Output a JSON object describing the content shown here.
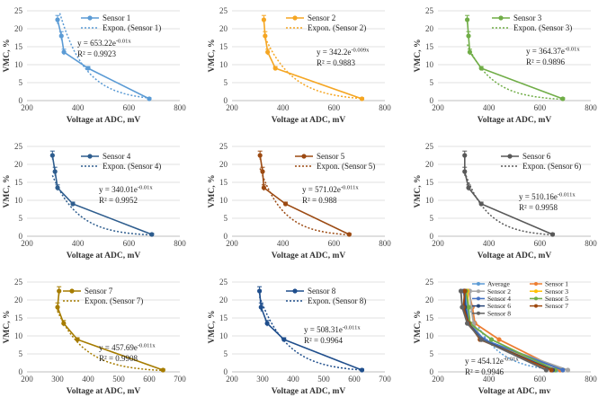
{
  "chart_data": [
    {
      "type": "line",
      "name": "Sensor 1",
      "color": "#5b9bd5",
      "x": [
        320,
        335,
        345,
        440,
        680
      ],
      "y": [
        22.5,
        18,
        13.5,
        9,
        0.5
      ],
      "err": [
        1.2,
        1.2,
        0.8,
        0.5,
        0.3
      ],
      "trend_label": "Expon. (Sensor 1)",
      "trend_a": 653.22,
      "trend_b": 0.01,
      "equation": "y = 653.22e",
      "exponent": "-0.01x",
      "r2": "R² = 0.9923",
      "xlim": [
        200,
        800
      ],
      "xticks": [
        "200",
        "400",
        "600",
        "800"
      ],
      "ylim": [
        0,
        25
      ],
      "yticks": [
        "0",
        "5",
        "10",
        "15",
        "20",
        "25"
      ],
      "xlabel": "Voltage at ADC, mV",
      "ylabel": "VMC, %"
    },
    {
      "type": "line",
      "name": "Sensor 2",
      "color": "#f5a623",
      "x": [
        325,
        330,
        340,
        370,
        710
      ],
      "y": [
        22.5,
        18,
        13.5,
        9,
        0.5
      ],
      "err": [
        1.2,
        1.2,
        0.8,
        0.5,
        0.3
      ],
      "trend_label": "Expon. (Sensor 2)",
      "trend_a": 342.2,
      "trend_b": 0.009,
      "equation": "y = 342.2e",
      "exponent": "-0.009x",
      "r2": "R² = 0.9883",
      "xlim": [
        200,
        800
      ],
      "xticks": [
        "200",
        "400",
        "600",
        "800"
      ],
      "ylim": [
        0,
        25
      ],
      "yticks": [
        "0",
        "5",
        "10",
        "15",
        "20",
        "25"
      ],
      "xlabel": "Voltage at ADC, mV",
      "ylabel": "VMC, %"
    },
    {
      "type": "line",
      "name": "Sensor 3",
      "color": "#70ad47",
      "x": [
        315,
        320,
        325,
        370,
        690
      ],
      "y": [
        22.5,
        18,
        13.5,
        9,
        0.5
      ],
      "err": [
        1.2,
        1.2,
        0.8,
        0.5,
        0.3
      ],
      "trend_label": "Expon. (Sensor 3)",
      "trend_a": 364.37,
      "trend_b": 0.01,
      "equation": "y = 364.37e",
      "exponent": "-0.01x",
      "r2": "R² = 0.9896",
      "xlim": [
        200,
        800
      ],
      "xticks": [
        "200",
        "400",
        "600",
        "800"
      ],
      "ylim": [
        0,
        25
      ],
      "yticks": [
        "0",
        "5",
        "10",
        "15",
        "20",
        "25"
      ],
      "xlabel": "Voltage at ADC, mV",
      "ylabel": "VMC, %"
    },
    {
      "type": "line",
      "name": "Sensor 4",
      "color": "#2e5d8e",
      "x": [
        300,
        310,
        320,
        380,
        690
      ],
      "y": [
        22.5,
        18,
        13.5,
        9,
        0.5
      ],
      "err": [
        1.2,
        1.2,
        0.8,
        0.5,
        0.3
      ],
      "trend_label": "Expon. (Sensor 4)",
      "trend_a": 340.01,
      "trend_b": 0.01,
      "equation": "y = 340.01e",
      "exponent": "-0.01x",
      "r2": "R² = 0.9952",
      "xlim": [
        200,
        800
      ],
      "xticks": [
        "200",
        "400",
        "600",
        "800"
      ],
      "ylim": [
        0,
        25
      ],
      "yticks": [
        "0",
        "5",
        "10",
        "15",
        "20",
        "25"
      ],
      "xlabel": "Voltage at ADC, mV",
      "ylabel": "VMC, %"
    },
    {
      "type": "line",
      "name": "Sensor 5",
      "color": "#9c4a12",
      "x": [
        310,
        320,
        325,
        410,
        660
      ],
      "y": [
        22.5,
        18,
        13.5,
        9,
        0.5
      ],
      "err": [
        1.2,
        1.2,
        0.8,
        0.5,
        0.3
      ],
      "trend_label": "Expon. (Sensor 5)",
      "trend_a": 571.02,
      "trend_b": 0.011,
      "equation": "y = 571.02e",
      "exponent": "-0.011x",
      "r2": "R² = 0.988",
      "xlim": [
        200,
        800
      ],
      "xticks": [
        "200",
        "400",
        "600",
        "800"
      ],
      "ylim": [
        0,
        25
      ],
      "yticks": [
        "0",
        "5",
        "10",
        "15",
        "20",
        "25"
      ],
      "xlabel": "Voltage at ADC, mV",
      "ylabel": "VMC, %"
    },
    {
      "type": "line",
      "name": "Sensor 6",
      "color": "#595959",
      "x": [
        305,
        305,
        320,
        370,
        650
      ],
      "y": [
        22.5,
        18,
        13.5,
        9,
        0.5
      ],
      "err": [
        1.2,
        1.2,
        0.8,
        0.5,
        0.3
      ],
      "trend_label": "Expon. (Sensor 6)",
      "trend_a": 510.16,
      "trend_b": 0.011,
      "equation": "y = 510.16e",
      "exponent": "-0.011x",
      "r2": "R² = 0.9958",
      "xlim": [
        200,
        800
      ],
      "xticks": [
        "200",
        "400",
        "600",
        "800"
      ],
      "ylim": [
        0,
        25
      ],
      "yticks": [
        "0",
        "5",
        "10",
        "15",
        "20",
        "25"
      ],
      "xlabel": "Voltage at ADC, mV",
      "ylabel": "VMC, %"
    },
    {
      "type": "line",
      "name": "Sensor 7",
      "color": "#a67c00",
      "x": [
        305,
        300,
        320,
        365,
        645
      ],
      "y": [
        22.5,
        18,
        13.5,
        9,
        0.5
      ],
      "err": [
        1.2,
        1.2,
        0.8,
        0.5,
        0.3
      ],
      "trend_label": "Expon. (Sensor 7)",
      "trend_a": 457.69,
      "trend_b": 0.011,
      "equation": "y = 457.69e",
      "exponent": "-0.011x",
      "r2": "R² = 0.9908",
      "xlim": [
        200,
        700
      ],
      "xticks": [
        "200",
        "300",
        "400",
        "500",
        "600",
        "700"
      ],
      "ylim": [
        0,
        25
      ],
      "yticks": [
        "0",
        "5",
        "10",
        "15",
        "20",
        "25"
      ],
      "xlabel": "Voltage at ADC, mV",
      "ylabel": "VMC, %"
    },
    {
      "type": "line",
      "name": "Sensor 8",
      "color": "#1f4e8c",
      "x": [
        290,
        295,
        315,
        370,
        625
      ],
      "y": [
        22.5,
        18,
        13.5,
        9,
        0.5
      ],
      "err": [
        1.2,
        1.2,
        0.8,
        0.5,
        0.3
      ],
      "trend_label": "Expon. (Sensor 8)",
      "trend_a": 508.31,
      "trend_b": 0.011,
      "equation": "y = 508.31e",
      "exponent": "-0.011x",
      "r2": "R² = 0.9964",
      "xlim": [
        200,
        700
      ],
      "xticks": [
        "200",
        "300",
        "400",
        "500",
        "600",
        "700"
      ],
      "ylim": [
        0,
        25
      ],
      "yticks": [
        "0",
        "5",
        "10",
        "15",
        "20",
        "25"
      ],
      "xlabel": "Voltage at ADC, mV",
      "ylabel": "VMC, %"
    },
    {
      "type": "line",
      "name": "Average",
      "combined": true,
      "xlim": [
        200,
        800
      ],
      "xticks": [
        "200",
        "400",
        "600",
        "800"
      ],
      "ylim": [
        0,
        25
      ],
      "yticks": [
        "0",
        "5",
        "10",
        "15",
        "20",
        "25"
      ],
      "xlabel": "Voltage at ADC, mv",
      "ylabel": "VMC, %",
      "equation": "y = 454.12e",
      "exponent": "-0.01x",
      "r2": "R² = 0.9946",
      "trend_a": 454.12,
      "trend_b": 0.01,
      "legend": [
        "Average",
        "Sensor 1",
        "Sensor 2",
        "Sensor 3",
        "Sensor 4",
        "Sensor 5",
        "Sensor 6",
        "Sensor 7",
        "Sensor 8"
      ],
      "series": [
        {
          "name": "Average",
          "color": "#5b9bd5",
          "x": [
            305,
            315,
            325,
            380,
            665
          ],
          "y": [
            22.5,
            18,
            13.5,
            9,
            0.5
          ]
        },
        {
          "name": "Sensor 1",
          "color": "#ed7d31",
          "x": [
            320,
            335,
            345,
            440,
            680
          ],
          "y": [
            22.5,
            18,
            13.5,
            9,
            0.5
          ]
        },
        {
          "name": "Sensor 2",
          "color": "#a5a5a5",
          "x": [
            325,
            330,
            340,
            370,
            710
          ],
          "y": [
            22.5,
            18,
            13.5,
            9,
            0.5
          ]
        },
        {
          "name": "Sensor 3",
          "color": "#ffc000",
          "x": [
            315,
            320,
            325,
            370,
            690
          ],
          "y": [
            22.5,
            18,
            13.5,
            9,
            0.5
          ]
        },
        {
          "name": "Sensor 4",
          "color": "#4472c4",
          "x": [
            300,
            310,
            320,
            380,
            690
          ],
          "y": [
            22.5,
            18,
            13.5,
            9,
            0.5
          ]
        },
        {
          "name": "Sensor 5",
          "color": "#70ad47",
          "x": [
            310,
            320,
            325,
            410,
            660
          ],
          "y": [
            22.5,
            18,
            13.5,
            9,
            0.5
          ]
        },
        {
          "name": "Sensor 6",
          "color": "#264478",
          "x": [
            305,
            305,
            320,
            370,
            650
          ],
          "y": [
            22.5,
            18,
            13.5,
            9,
            0.5
          ]
        },
        {
          "name": "Sensor 7",
          "color": "#9e480e",
          "x": [
            305,
            300,
            320,
            365,
            645
          ],
          "y": [
            22.5,
            18,
            13.5,
            9,
            0.5
          ]
        },
        {
          "name": "Sensor 8",
          "color": "#636363",
          "x": [
            290,
            295,
            315,
            370,
            625
          ],
          "y": [
            22.5,
            18,
            13.5,
            9,
            0.5
          ]
        }
      ]
    }
  ]
}
